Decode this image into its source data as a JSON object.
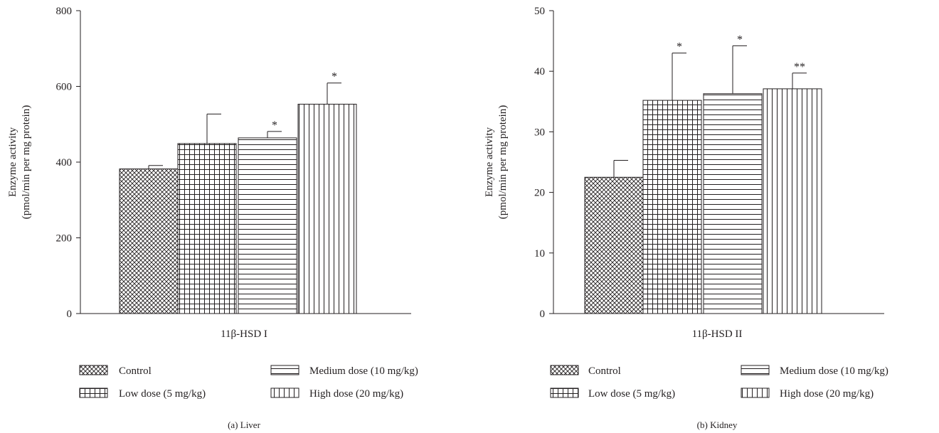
{
  "chart_data": [
    {
      "type": "bar",
      "panel_label": "(a)  Liver",
      "xlabel": "11β-HSD I",
      "ylabel_line1": "Enzyme activity",
      "ylabel_line2": "(pmol/min per mg protein)",
      "ylim": [
        0,
        800
      ],
      "yticks": [
        0,
        200,
        400,
        600,
        800
      ],
      "categories": [
        "Control",
        "Low dose (5 mg/kg)",
        "Medium dose (10 mg/kg)",
        "High dose (20 mg/kg)"
      ],
      "values": [
        382,
        449,
        464,
        553
      ],
      "errors": [
        9,
        78,
        17,
        56
      ],
      "significance": [
        "",
        "",
        "*",
        "*"
      ]
    },
    {
      "type": "bar",
      "panel_label": "(b)  Kidney",
      "xlabel": "11β-HSD II",
      "ylabel_line1": "Enzyme activity",
      "ylabel_line2": "(pmol/min per mg protein)",
      "ylim": [
        0,
        50
      ],
      "yticks": [
        0,
        10,
        20,
        30,
        40,
        50
      ],
      "categories": [
        "Control",
        "Low dose (5 mg/kg)",
        "Medium dose (10 mg/kg)",
        "High dose (20 mg/kg)"
      ],
      "values": [
        22.5,
        35.2,
        36.3,
        37.1
      ],
      "errors": [
        2.8,
        7.8,
        7.9,
        2.6
      ],
      "significance": [
        "",
        "*",
        "*",
        "**"
      ]
    }
  ],
  "legend": {
    "items": [
      {
        "label": "Control",
        "pattern": "crosshatch-diag"
      },
      {
        "label": "Low dose (5 mg/kg)",
        "pattern": "grid"
      },
      {
        "label": "Medium dose (10 mg/kg)",
        "pattern": "horizontal"
      },
      {
        "label": "High dose (20 mg/kg)",
        "pattern": "vertical"
      }
    ]
  }
}
